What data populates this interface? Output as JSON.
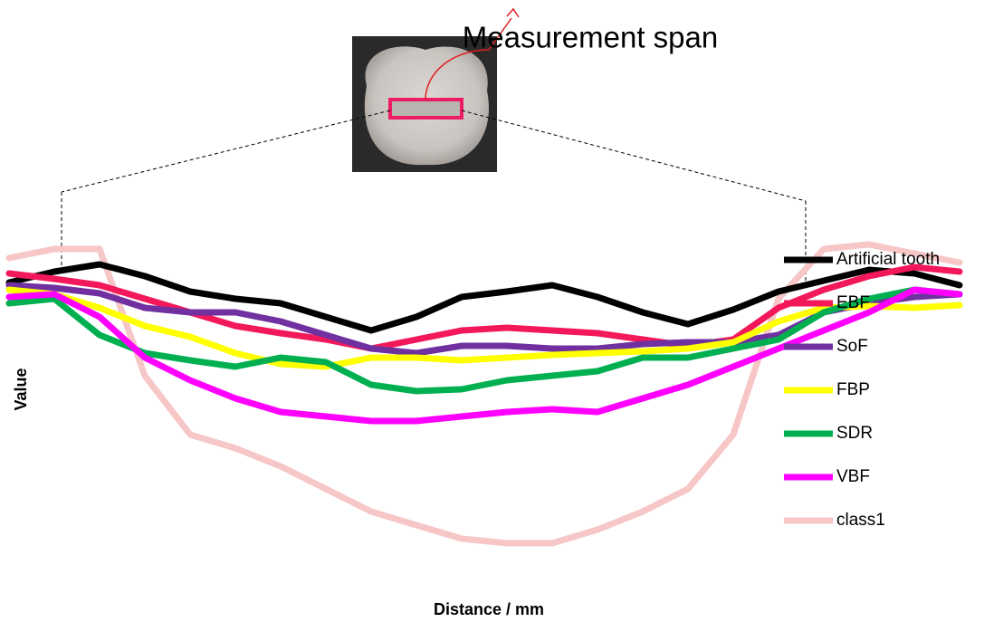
{
  "chart_data": {
    "type": "line",
    "title": "Measurement span",
    "x_label": "Distance  / mm",
    "y_label": "Value",
    "ylim": [
      0,
      100
    ],
    "series": [
      {
        "name": "class1",
        "color": "#f7c6c6",
        "values": [
          88.75,
          91.25,
          91.25,
          56.25,
          40,
          36.25,
          31.25,
          25,
          18.75,
          15,
          11.25,
          10,
          10,
          13.75,
          18.75,
          25,
          40,
          77.5,
          91.25,
          92.5,
          90,
          87.5
        ]
      },
      {
        "name": "Artificial tooth",
        "color": "#000000",
        "values": [
          82,
          85,
          87,
          83.75,
          79.5,
          77.5,
          76.25,
          72.5,
          68.75,
          72.5,
          78,
          79.5,
          81.25,
          78,
          73.75,
          70.5,
          74.5,
          79.5,
          82.5,
          85.5,
          84.5,
          81.25
        ]
      },
      {
        "name": "EBF",
        "color": "#f2185a",
        "values": [
          84.5,
          83,
          81.25,
          77.5,
          73.75,
          70,
          68,
          66.25,
          63.75,
          66.25,
          68.75,
          69.5,
          68.75,
          68,
          66.25,
          64.5,
          66.25,
          75,
          80,
          83.75,
          86.25,
          85
        ]
      },
      {
        "name": "SoF",
        "color": "#7030a0",
        "values": [
          81.25,
          80.5,
          79,
          75,
          73.75,
          73.75,
          71.25,
          67.5,
          63.75,
          62.5,
          64.5,
          64.5,
          63.75,
          63.75,
          65,
          65.5,
          65.5,
          67.5,
          73.75,
          76.25,
          78,
          78.75
        ]
      },
      {
        "name": "FBP",
        "color": "#ffff00",
        "values": [
          80,
          78.75,
          75,
          70,
          67,
          62.5,
          59.5,
          58.75,
          61.25,
          61.25,
          60.5,
          61.25,
          62,
          62.5,
          63,
          63.75,
          65.5,
          71.25,
          75,
          75.5,
          75,
          75.75
        ]
      },
      {
        "name": "SDR",
        "color": "#00b050",
        "values": [
          76.25,
          77.5,
          67.5,
          62.5,
          60.5,
          58.75,
          61.25,
          60,
          53.75,
          52,
          52.5,
          55,
          56.25,
          57.5,
          61.25,
          61.25,
          63.75,
          66.25,
          73.75,
          77.5,
          80,
          78.75
        ]
      },
      {
        "name": "VBF",
        "color": "#ff00ff",
        "values": [
          78,
          78.75,
          72.5,
          61.25,
          55,
          50,
          46.25,
          45,
          43.75,
          43.75,
          45,
          46.25,
          47,
          46.25,
          50,
          53.75,
          58.75,
          63.75,
          68.75,
          73.75,
          80,
          78.75
        ]
      }
    ],
    "legend_order": [
      1,
      2,
      3,
      4,
      5,
      6,
      0
    ]
  }
}
